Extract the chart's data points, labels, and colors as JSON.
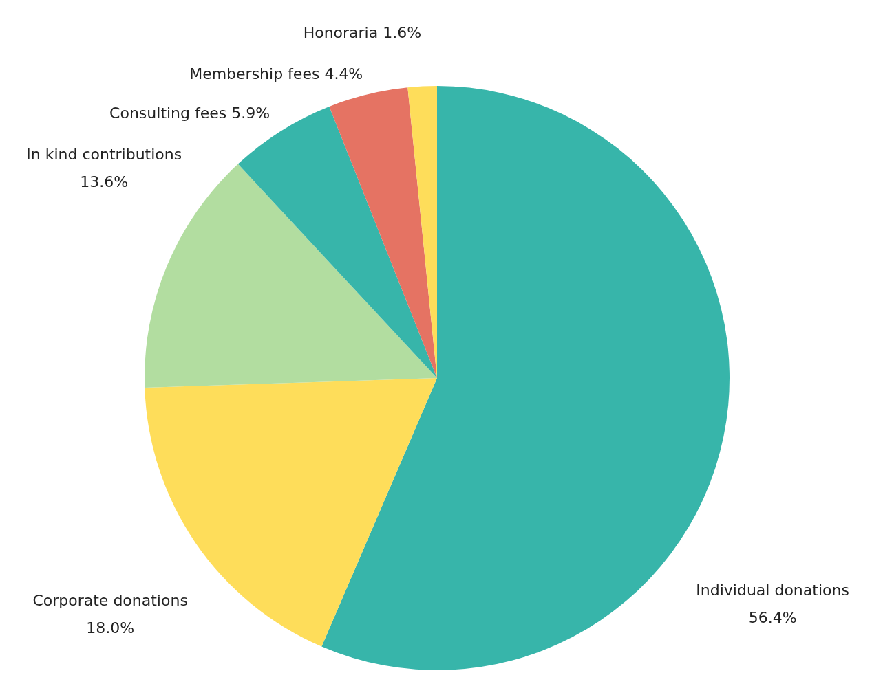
{
  "chart_data": {
    "type": "pie",
    "categories": [
      "Individual donations",
      "Corporate donations",
      "In kind contributions",
      "Consulting fees",
      "Membership fees",
      "Honoraria"
    ],
    "values": [
      56.4,
      18.0,
      13.6,
      5.9,
      4.4,
      1.6
    ],
    "colors": [
      "#37b5aa",
      "#fedd5a",
      "#b2dda0",
      "#37b5aa",
      "#e57363",
      "#fedd5a"
    ],
    "value_labels": [
      "56.4%",
      "18.0%",
      "13.6%",
      "5.9%",
      "4.4%",
      "1.6%"
    ]
  }
}
